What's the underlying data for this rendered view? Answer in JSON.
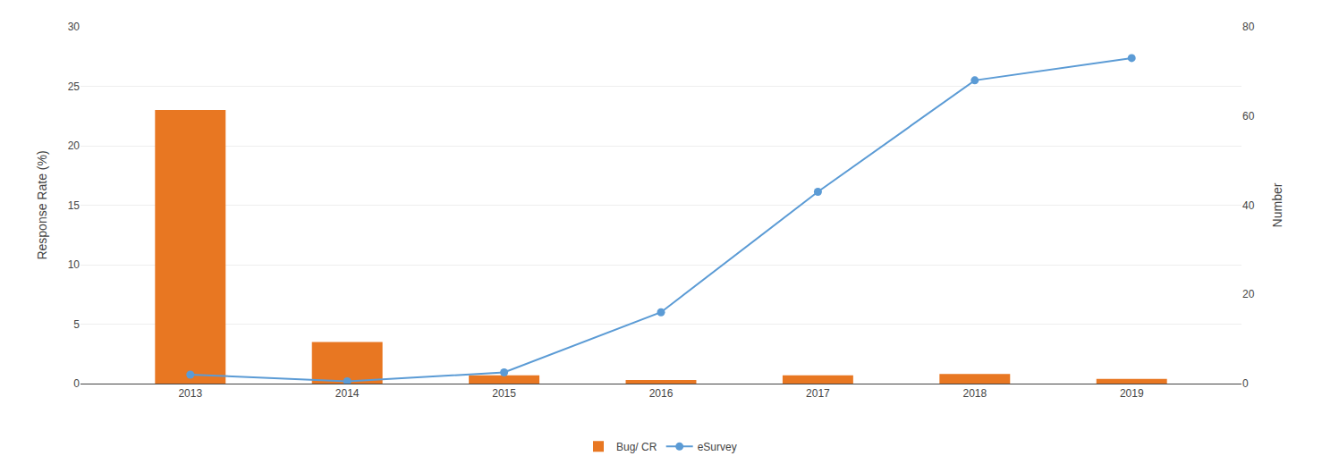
{
  "chart_data": {
    "type": "bar",
    "x": [
      2013,
      2014,
      2015,
      2016,
      2017,
      2018,
      2019
    ],
    "series": [
      {
        "name": "Bug/ CR",
        "type": "bar",
        "color": "#E87722",
        "values": [
          23.0,
          3.5,
          0.7,
          0.3,
          0.7,
          0.8,
          0.4
        ]
      },
      {
        "name": "eSurvey",
        "type": "line",
        "color": "#5B9BD5",
        "marker": "circle",
        "axis": "y2",
        "values": [
          2.0,
          0.5,
          2.5,
          16.0,
          43.0,
          68.0,
          73.0
        ]
      }
    ],
    "xlim": [
      2012.3,
      2019.7
    ],
    "xticks": [
      2013,
      2014,
      2015,
      2016,
      2017,
      2018,
      2019
    ],
    "ylabel": "Response Rate (%)",
    "ylim": [
      0,
      30
    ],
    "yticks": [
      0,
      5,
      10,
      15,
      20,
      25,
      30
    ],
    "y2label": "Number",
    "y2lim": [
      0,
      80
    ],
    "y2ticks": [
      0,
      20,
      40,
      60,
      80
    ],
    "grid": true,
    "legend": "bottom"
  }
}
